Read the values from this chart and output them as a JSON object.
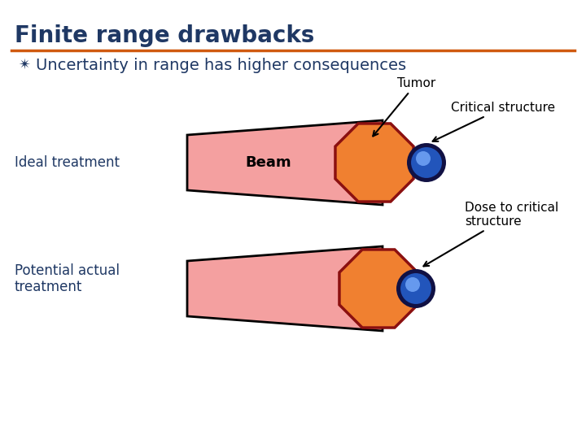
{
  "title": "Finite range drawbacks",
  "title_color": "#1F3864",
  "title_fontsize": 20,
  "separator_color": "#D05A10",
  "bullet_text": "Uncertainty in range has higher consequences",
  "bullet_color": "#1F3864",
  "bullet_fontsize": 14,
  "beam_color": "#F4A0A0",
  "tumor_color": "#F08030",
  "tumor_outline": "#8B1010",
  "critical_fill": "#2255BB",
  "critical_outline": "#111144",
  "critical_highlight": "#6699EE",
  "bg_color": "#FFFFFF",
  "label_ideal": "Ideal treatment",
  "label_potential": "Potential actual\ntreatment",
  "label_beam": "Beam",
  "label_tumor": "Tumor",
  "label_critical": "Critical structure",
  "label_dose": "Dose to critical\nstructure",
  "label_fontsize": 12,
  "annotation_fontsize": 11
}
